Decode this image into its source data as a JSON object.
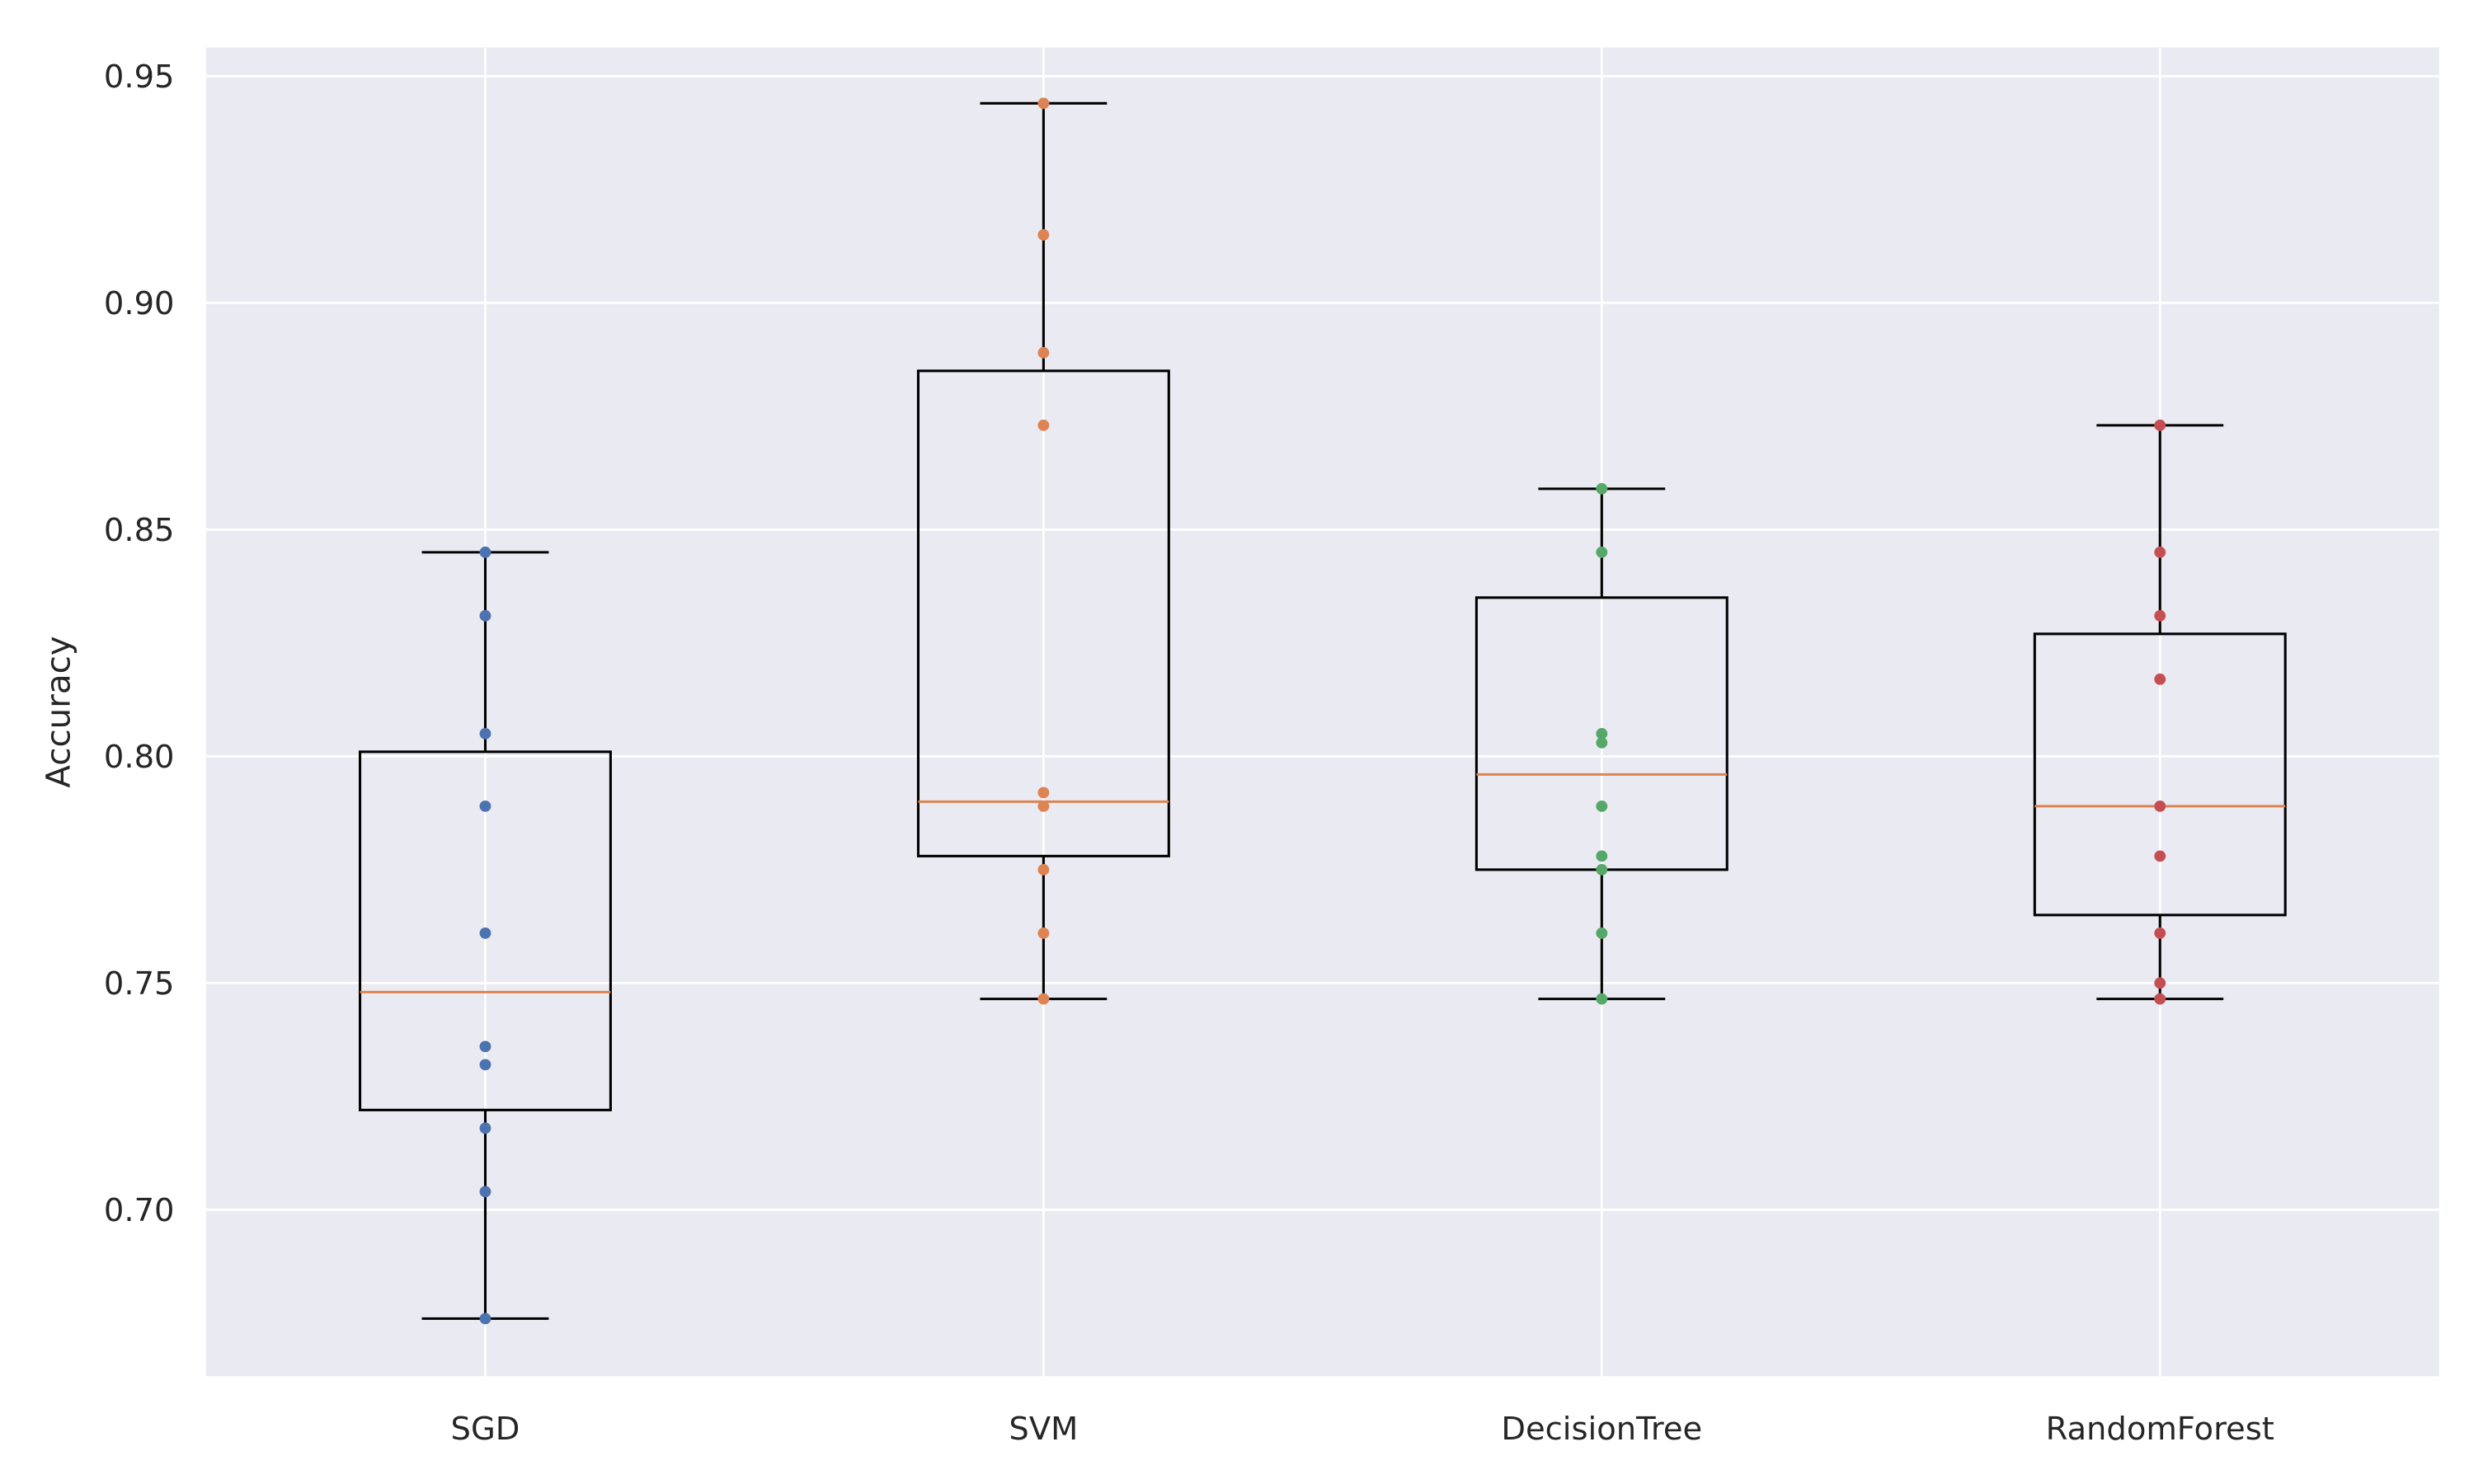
{
  "chart_data": {
    "type": "box",
    "title": "",
    "xlabel": "",
    "ylabel": "Accuracy",
    "ylim": [
      0.6633,
      0.9563
    ],
    "yticks": [
      0.7,
      0.75,
      0.8,
      0.85,
      0.9,
      0.95
    ],
    "ytick_labels": [
      "0.70",
      "0.75",
      "0.80",
      "0.85",
      "0.90",
      "0.95"
    ],
    "grid": true,
    "background": "#EAEAF2",
    "median_color": "#DD8452",
    "categories": [
      "SGD",
      "SVM",
      "DecisionTree",
      "RandomForest"
    ],
    "series": [
      {
        "color": "#4C72B0",
        "box": {
          "whislo": 0.676,
          "q1": 0.722,
          "median": 0.748,
          "q3": 0.801,
          "whishi": 0.845
        },
        "points": [
          0.845,
          0.831,
          0.805,
          0.789,
          0.761,
          0.736,
          0.732,
          0.718,
          0.704,
          0.676
        ]
      },
      {
        "color": "#DD8452",
        "box": {
          "whislo": 0.7465,
          "q1": 0.778,
          "median": 0.79,
          "q3": 0.885,
          "whishi": 0.944
        },
        "points": [
          0.944,
          0.915,
          0.889,
          0.873,
          0.792,
          0.789,
          0.775,
          0.761,
          0.7465
        ]
      },
      {
        "color": "#55A868",
        "box": {
          "whislo": 0.7465,
          "q1": 0.775,
          "median": 0.796,
          "q3": 0.835,
          "whishi": 0.859
        },
        "points": [
          0.859,
          0.845,
          0.805,
          0.803,
          0.789,
          0.778,
          0.775,
          0.761,
          0.7465
        ]
      },
      {
        "color": "#C44E52",
        "box": {
          "whislo": 0.7465,
          "q1": 0.765,
          "median": 0.789,
          "q3": 0.827,
          "whishi": 0.873
        },
        "points": [
          0.873,
          0.845,
          0.831,
          0.817,
          0.789,
          0.778,
          0.761,
          0.75,
          0.7465
        ]
      }
    ]
  }
}
